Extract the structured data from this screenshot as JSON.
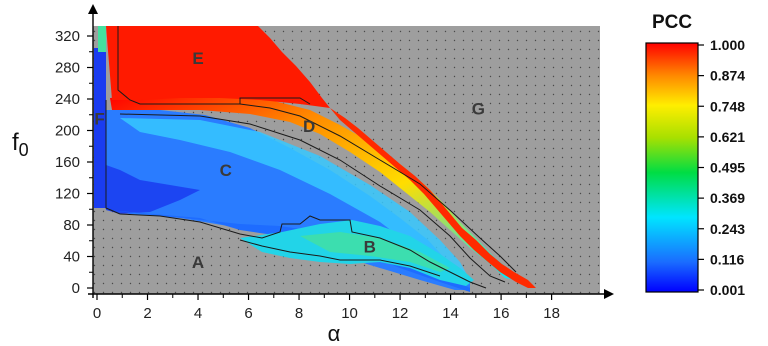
{
  "chart_data": {
    "type": "heatmap",
    "xlabel": "α",
    "ylabel_main": "f",
    "ylabel_sub": "0",
    "x_ticks": [
      0,
      2,
      4,
      6,
      8,
      10,
      12,
      14,
      16,
      18
    ],
    "y_ticks": [
      0,
      40,
      80,
      120,
      160,
      200,
      240,
      280,
      320
    ],
    "xlim": [
      -0.2,
      19.8
    ],
    "ylim": [
      -10,
      335
    ],
    "background_color": "#9e9e9e",
    "regions": [
      {
        "label": "A",
        "x": 4.0,
        "y": 33
      },
      {
        "label": "B",
        "x": 10.8,
        "y": 53
      },
      {
        "label": "C",
        "x": 5.1,
        "y": 150
      },
      {
        "label": "D",
        "x": 8.4,
        "y": 206
      },
      {
        "label": "E",
        "x": 4.0,
        "y": 292
      },
      {
        "label": "F",
        "x": 0.1,
        "y": 215
      },
      {
        "label": "G",
        "x": 15.1,
        "y": 228
      }
    ],
    "colorbar": {
      "title": "PCC",
      "ticks": [
        "1.000",
        "0.874",
        "0.748",
        "0.621",
        "0.495",
        "0.369",
        "0.243",
        "0.116",
        "0.001"
      ],
      "range": [
        0.001,
        1.0
      ],
      "colors": [
        "#ff0000",
        "#ff8800",
        "#ffee00",
        "#00dd00",
        "#00e5ff",
        "#1a8cff",
        "#0000ff"
      ]
    }
  }
}
